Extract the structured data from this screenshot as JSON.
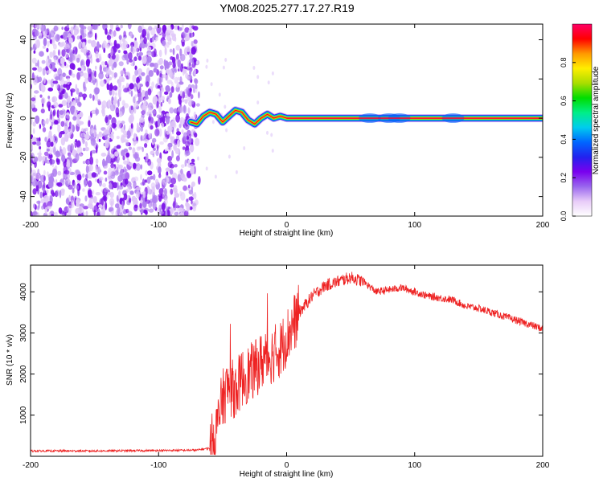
{
  "title": "YM08.2025.277.17.27.R19",
  "chart_data": [
    {
      "type": "heatmap",
      "xlabel": "Height of straight line (km)",
      "ylabel": "Frequency (Hz)",
      "xlim": [
        -200,
        200
      ],
      "ylim": [
        -50,
        48
      ],
      "xticks": [
        -200,
        -100,
        0,
        100,
        200
      ],
      "yticks": [
        -40,
        -20,
        0,
        20,
        40
      ],
      "colorbar": {
        "label": "Normalized spectral amplitude",
        "range": [
          0,
          1
        ],
        "ticks": [
          0.0,
          0.2,
          0.4,
          0.6,
          0.8
        ],
        "colormap": [
          "#ffffff",
          "#e8ccf8",
          "#9966ee",
          "#7a00ee",
          "#2222ee",
          "#0066ff",
          "#00ccee",
          "#00ee88",
          "#00dd00",
          "#aadd00",
          "#ffee00",
          "#ff9900",
          "#ff0000",
          "#ff0066"
        ]
      },
      "noise_region": {
        "x": [
          -200,
          -70
        ],
        "amplitude": 0.05
      },
      "ridge": {
        "x": [
          -75,
          -70,
          -65,
          -60,
          -55,
          -50,
          -45,
          -40,
          -35,
          -30,
          -25,
          -20,
          -15,
          -10,
          -5,
          0,
          200
        ],
        "frequency": [
          -2,
          -3,
          1,
          3,
          2,
          -2,
          1,
          4,
          3,
          -1,
          -3,
          0,
          2,
          0,
          1,
          0,
          0
        ],
        "amplitude": [
          0.35,
          0.45,
          0.5,
          0.55,
          0.6,
          0.6,
          0.7,
          0.75,
          0.7,
          0.7,
          0.72,
          0.8,
          0.85,
          0.8,
          0.88,
          0.95,
          0.95
        ]
      }
    },
    {
      "type": "line",
      "xlabel": "Height of straight line (km)",
      "ylabel": "SNR (10 * v/v)",
      "xlim": [
        -200,
        200
      ],
      "ylim": [
        0,
        4650
      ],
      "xticks": [
        -200,
        -100,
        0,
        100,
        200
      ],
      "yticks": [
        1000,
        2000,
        3000,
        4000
      ],
      "color": "#ee2222",
      "series": [
        {
          "x": [
            -200,
            -150,
            -100,
            -70,
            -60,
            -55,
            -50,
            -45,
            -40,
            -35,
            -30,
            -25,
            -20,
            -15,
            -10,
            -5,
            0,
            10,
            20,
            30,
            40,
            50,
            60,
            70,
            80,
            90,
            100,
            110,
            120,
            130,
            140,
            150,
            160,
            170,
            180,
            190,
            200
          ],
          "values": [
            130,
            130,
            140,
            150,
            200,
            600,
            1400,
            1700,
            1600,
            1900,
            2000,
            2100,
            2300,
            2400,
            2500,
            2600,
            2900,
            3500,
            3900,
            4150,
            4250,
            4350,
            4250,
            4000,
            4050,
            4100,
            4000,
            3900,
            3850,
            3800,
            3650,
            3600,
            3500,
            3400,
            3300,
            3200,
            3100
          ]
        }
      ]
    }
  ]
}
